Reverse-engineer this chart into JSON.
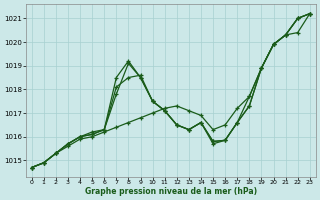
{
  "title": "Graphe pression niveau de la mer (hPa)",
  "bg_color": "#cce8e8",
  "grid_color": "#a8d0d0",
  "line_color": "#1a5c1a",
  "ylim": [
    1014.3,
    1021.6
  ],
  "yticks": [
    1015,
    1016,
    1017,
    1018,
    1019,
    1020,
    1021
  ],
  "series": [
    [
      1014.7,
      1014.9,
      1015.3,
      1015.6,
      1015.9,
      1016.0,
      1016.2,
      1016.4,
      1016.6,
      1016.8,
      1017.0,
      1017.2,
      1017.3,
      1017.1,
      1016.9,
      1016.3,
      1016.5,
      1017.2,
      1017.7,
      1018.9,
      1019.9,
      1020.3,
      1020.4,
      1021.2
    ],
    [
      1014.7,
      1014.9,
      1015.3,
      1015.7,
      1016.0,
      1016.1,
      1016.3,
      1017.8,
      1019.1,
      1018.5,
      1017.5,
      1017.1,
      1016.5,
      1016.3,
      1016.6,
      1015.8,
      1015.85,
      1016.6,
      1017.3,
      1018.9,
      1019.9,
      1020.3,
      1021.0,
      1021.2
    ],
    [
      1014.7,
      1014.9,
      1015.3,
      1015.7,
      1016.0,
      1016.1,
      1016.3,
      1018.1,
      1018.5,
      1018.6,
      1017.5,
      1017.1,
      1016.5,
      1016.3,
      1016.6,
      1015.8,
      1015.85,
      1016.6,
      1017.7,
      1018.9,
      1019.9,
      1020.3,
      1021.0,
      1021.2
    ],
    [
      1014.7,
      1014.9,
      1015.3,
      1015.7,
      1016.0,
      1016.2,
      1016.3,
      1018.5,
      1019.2,
      1018.5,
      1017.5,
      1017.1,
      1016.5,
      1016.3,
      1016.6,
      1015.7,
      1015.85,
      1016.6,
      1017.3,
      1018.9,
      1019.9,
      1020.3,
      1021.0,
      1021.2
    ]
  ]
}
